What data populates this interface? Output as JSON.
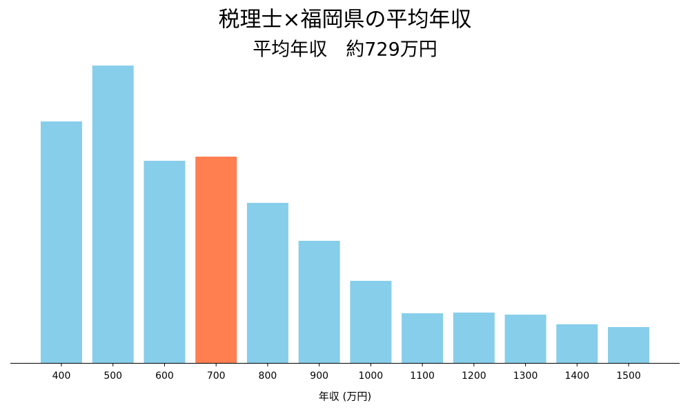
{
  "chart_data": {
    "type": "bar",
    "title": "税理士×福岡県の平均年収",
    "subtitle": "平均年収　約729万円",
    "x_label": "年収 (万円)",
    "categories": [
      "400",
      "500",
      "600",
      "700",
      "800",
      "900",
      "1000",
      "1100",
      "1200",
      "1300",
      "1400",
      "1500"
    ],
    "values": [
      350,
      431,
      293,
      299,
      232,
      177,
      119,
      72,
      73,
      70,
      56,
      52
    ],
    "colors": [
      "#87ceeb",
      "#87ceeb",
      "#87ceeb",
      "#ff7f50",
      "#87ceeb",
      "#87ceeb",
      "#87ceeb",
      "#87ceeb",
      "#87ceeb",
      "#87ceeb",
      "#87ceeb",
      "#87ceeb"
    ],
    "ylim": [
      0,
      452
    ],
    "grid": false
  }
}
